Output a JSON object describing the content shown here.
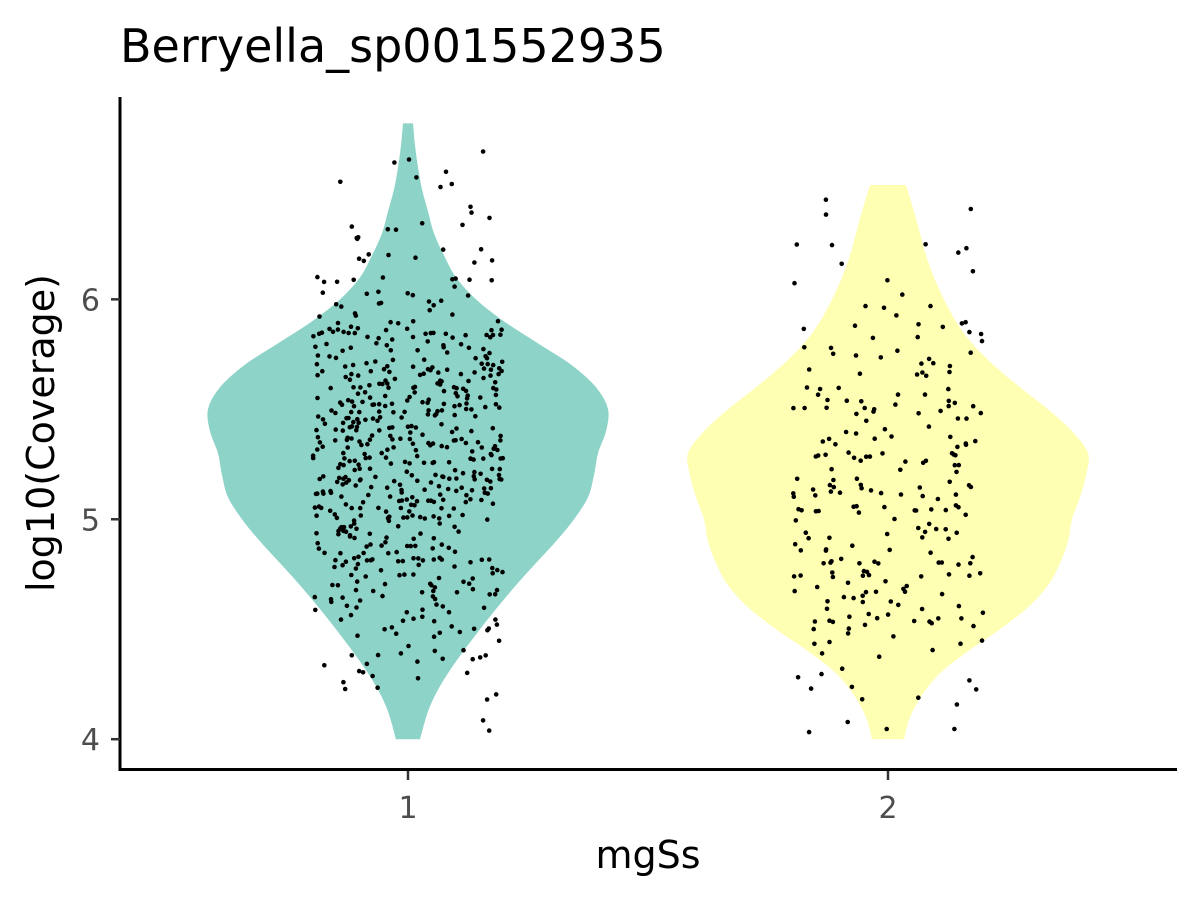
{
  "chart_data": {
    "type": "violin",
    "title": "Berryella_sp001552935",
    "xlabel": "mgSs",
    "ylabel": "log10(Coverage)",
    "categories": [
      "1",
      "2"
    ],
    "y_ticks": [
      4,
      5,
      6
    ],
    "y_tick_labels": [
      "4",
      "5",
      "6"
    ],
    "ylim": [
      3.86,
      6.92
    ],
    "grid": false,
    "legend": "none",
    "jitter_points_shown": true,
    "series": [
      {
        "category": "1",
        "color": "#8DD3C7",
        "range": [
          4.0,
          6.8
        ],
        "point_count": 600,
        "density_profile": [
          {
            "y": 4.0,
            "w": 0.06
          },
          {
            "y": 4.15,
            "w": 0.11
          },
          {
            "y": 4.3,
            "w": 0.2
          },
          {
            "y": 4.5,
            "w": 0.36
          },
          {
            "y": 4.7,
            "w": 0.54
          },
          {
            "y": 4.9,
            "w": 0.74
          },
          {
            "y": 5.0,
            "w": 0.83
          },
          {
            "y": 5.1,
            "w": 0.9
          },
          {
            "y": 5.2,
            "w": 0.93
          },
          {
            "y": 5.3,
            "w": 0.95
          },
          {
            "y": 5.4,
            "w": 0.99
          },
          {
            "y": 5.5,
            "w": 1.0
          },
          {
            "y": 5.6,
            "w": 0.94
          },
          {
            "y": 5.7,
            "w": 0.82
          },
          {
            "y": 5.8,
            "w": 0.65
          },
          {
            "y": 5.9,
            "w": 0.48
          },
          {
            "y": 6.0,
            "w": 0.34
          },
          {
            "y": 6.1,
            "w": 0.24
          },
          {
            "y": 6.2,
            "w": 0.18
          },
          {
            "y": 6.3,
            "w": 0.13
          },
          {
            "y": 6.4,
            "w": 0.1
          },
          {
            "y": 6.5,
            "w": 0.07
          },
          {
            "y": 6.6,
            "w": 0.05
          },
          {
            "y": 6.7,
            "w": 0.035
          },
          {
            "y": 6.8,
            "w": 0.025
          }
        ]
      },
      {
        "category": "2",
        "color": "#FFFFB3",
        "range": [
          4.0,
          6.52
        ],
        "point_count": 250,
        "density_profile": [
          {
            "y": 4.0,
            "w": 0.08
          },
          {
            "y": 4.1,
            "w": 0.11
          },
          {
            "y": 4.2,
            "w": 0.17
          },
          {
            "y": 4.3,
            "w": 0.26
          },
          {
            "y": 4.4,
            "w": 0.4
          },
          {
            "y": 4.5,
            "w": 0.56
          },
          {
            "y": 4.6,
            "w": 0.7
          },
          {
            "y": 4.7,
            "w": 0.8
          },
          {
            "y": 4.8,
            "w": 0.86
          },
          {
            "y": 4.9,
            "w": 0.9
          },
          {
            "y": 5.0,
            "w": 0.92
          },
          {
            "y": 5.1,
            "w": 0.96
          },
          {
            "y": 5.2,
            "w": 0.99
          },
          {
            "y": 5.3,
            "w": 1.0
          },
          {
            "y": 5.4,
            "w": 0.92
          },
          {
            "y": 5.5,
            "w": 0.8
          },
          {
            "y": 5.6,
            "w": 0.66
          },
          {
            "y": 5.7,
            "w": 0.53
          },
          {
            "y": 5.8,
            "w": 0.42
          },
          {
            "y": 5.9,
            "w": 0.34
          },
          {
            "y": 6.0,
            "w": 0.28
          },
          {
            "y": 6.1,
            "w": 0.23
          },
          {
            "y": 6.2,
            "w": 0.19
          },
          {
            "y": 6.3,
            "w": 0.16
          },
          {
            "y": 6.4,
            "w": 0.13
          },
          {
            "y": 6.52,
            "w": 0.09
          }
        ]
      }
    ]
  }
}
